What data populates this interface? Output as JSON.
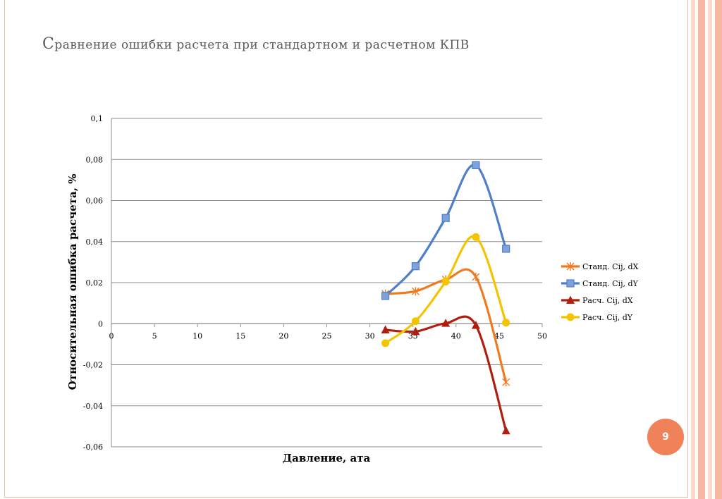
{
  "slide": {
    "title_first": "С",
    "title_rest": "равнение ошибки расчета при стандартном и расчетном КПВ",
    "page_number": "9"
  },
  "colors": {
    "frame": "#f2b8a8",
    "accent": "#f0825a",
    "stripe_dark": "#f6b8a3",
    "stripe_light": "#fbd9cc"
  },
  "chart_data": {
    "type": "scatter",
    "title": "",
    "xlabel": "Давление, ата",
    "ylabel": "Относительная ошибка расчета, %",
    "xlim": [
      0,
      50
    ],
    "ylim": [
      -0.06,
      0.1
    ],
    "x_ticks": [
      0,
      5,
      10,
      15,
      20,
      25,
      30,
      35,
      40,
      45,
      50
    ],
    "y_ticks": [
      -0.06,
      -0.04,
      -0.02,
      0,
      0.02,
      0.04,
      0.06,
      0.08,
      0.1
    ],
    "x_tick_labels": [
      "0",
      "5",
      "10",
      "15",
      "20",
      "25",
      "30",
      "35",
      "40",
      "45",
      "50"
    ],
    "y_tick_labels": [
      "-0,06",
      "-0,04",
      "-0,02",
      "0",
      "0,02",
      "0,04",
      "0,06",
      "0,08",
      "0,1"
    ],
    "grid": "horizontal",
    "legend_position": "right",
    "series": [
      {
        "name": "Станд. Cij, dX",
        "color": "#f07a20",
        "marker": "star",
        "x": [
          31.8,
          35.3,
          38.8,
          42.3,
          45.8
        ],
        "y": [
          0.0145,
          0.0158,
          0.0215,
          0.0228,
          -0.0285
        ]
      },
      {
        "name": "Станд. Cij, dY",
        "color": "#4f7fc8",
        "marker": "square",
        "x": [
          31.8,
          35.3,
          38.8,
          42.3,
          45.8
        ],
        "y": [
          0.0135,
          0.028,
          0.0515,
          0.0772,
          0.0365
        ]
      },
      {
        "name": "Расч. Cij, dX",
        "color": "#b01e0e",
        "marker": "triangle",
        "x": [
          31.8,
          35.3,
          38.8,
          42.3,
          45.8
        ],
        "y": [
          -0.003,
          -0.0038,
          0.0002,
          -0.0008,
          -0.0522
        ]
      },
      {
        "name": "Расч. Cij, dY",
        "color": "#f5c400",
        "marker": "circle",
        "x": [
          31.8,
          35.3,
          38.8,
          42.3,
          45.8
        ],
        "y": [
          -0.0095,
          0.0012,
          0.0205,
          0.0422,
          0.0005
        ]
      }
    ]
  }
}
